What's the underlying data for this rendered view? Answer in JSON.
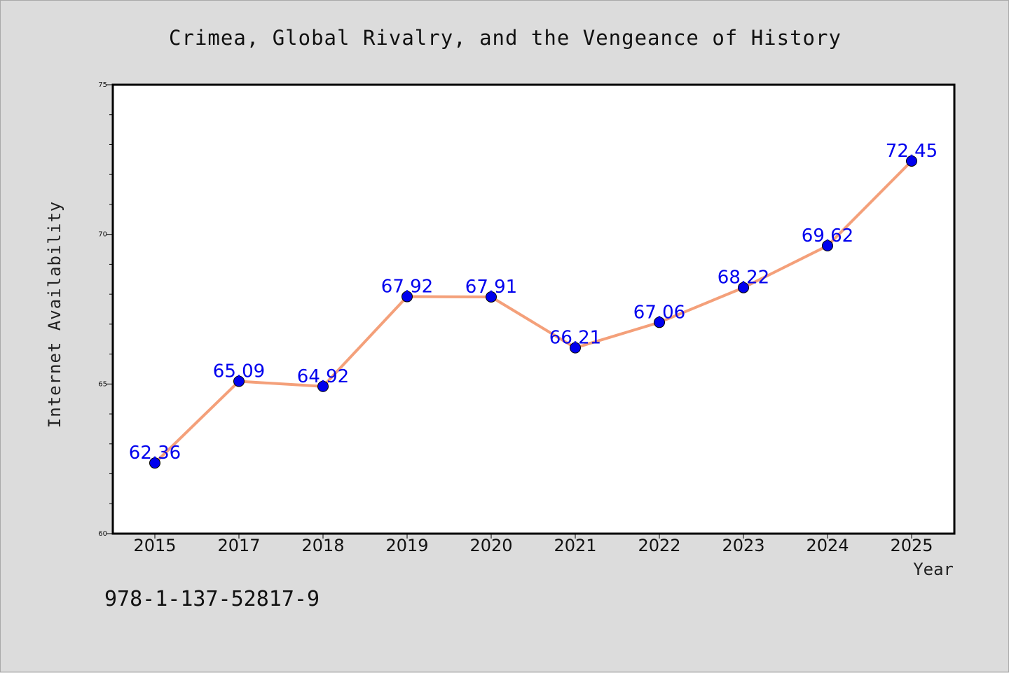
{
  "chart_data": {
    "type": "line",
    "title": "Crimea, Global Rivalry, and the Vengeance of History",
    "xlabel": "Year",
    "ylabel": "Internet Availability",
    "categories": [
      "2015",
      "2017",
      "2018",
      "2019",
      "2020",
      "2021",
      "2022",
      "2023",
      "2024",
      "2025"
    ],
    "series": [
      {
        "values": [
          62.36,
          65.09,
          64.92,
          67.92,
          67.91,
          66.21,
          67.06,
          68.22,
          69.62,
          72.45
        ],
        "labels": [
          "62.36",
          "65.09",
          "64.92",
          "67.92",
          "67.91",
          "66.21",
          "67.06",
          "68.22",
          "69.62",
          "72.45"
        ],
        "line_color": "#f4a07a",
        "marker_color": "#0000ee"
      }
    ],
    "ylim": [
      60,
      75
    ],
    "yticks": [
      60,
      65,
      70,
      75
    ],
    "yticks_minor": [
      61,
      62,
      63,
      64,
      66,
      67,
      68,
      69,
      71,
      72,
      73,
      74
    ],
    "grid": false,
    "legend": "none"
  },
  "footer": {
    "isbn": "978-1-137-52817-9"
  },
  "colors": {
    "background": "#dcdcdc",
    "plot_background": "#ffffff",
    "line": "#f4a07a",
    "marker": "#0000ee",
    "data_label": "#0000ee"
  }
}
